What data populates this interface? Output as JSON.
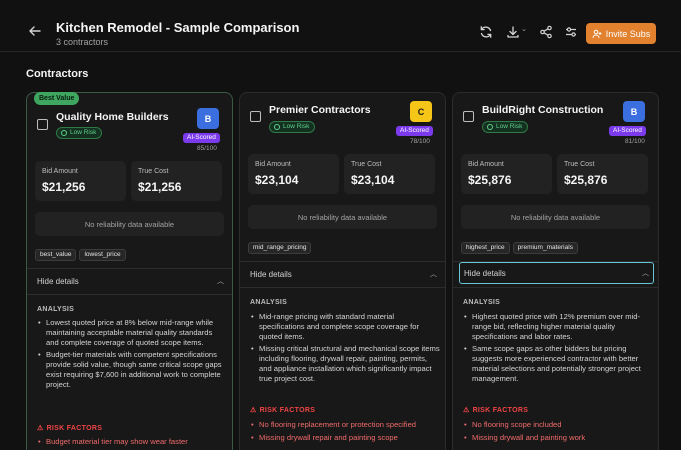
{
  "header": {
    "title": "Kitchen Remodel - Sample Comparison",
    "subtitle": "3 contractors",
    "invite_label": "Invite Subs"
  },
  "section_title": "Contractors",
  "colors": {
    "accent": "#e2812e",
    "ai_badge": "#7c3aed",
    "grade_blue": "#3b6fe0",
    "grade_yellow": "#f5c518",
    "best_value": "#3ea65f",
    "risk": "#ef4444"
  },
  "cards": [
    {
      "badge": "Best Value",
      "name": "Quality Home Builders",
      "risk_level": "Low Risk",
      "grade": "B",
      "ai_label": "AI-Scored",
      "score": "85/100",
      "bid_label": "Bid Amount",
      "bid_amount": "$21,256",
      "true_label": "True Cost",
      "true_cost": "$21,256",
      "reliability": "No reliability data available",
      "tags": [
        "best_value",
        "lowest_price"
      ],
      "details_label": "Hide details",
      "analysis_label": "ANALYSIS",
      "analysis": [
        "Lowest quoted price at 8% below mid-range while maintaining acceptable material quality standards and complete coverage of quoted scope items.",
        "Budget-tier materials with competent specifications provide solid value, though same critical scope gaps exist requiring $7,600 in additional work to complete project."
      ],
      "risk_factors_label": "RISK FACTORS",
      "risk_factors": [
        "Budget material tier may show wear faster"
      ]
    },
    {
      "name": "Premier Contractors",
      "risk_level": "Low Risk",
      "grade": "C",
      "ai_label": "AI-Scored",
      "score": "78/100",
      "bid_label": "Bid Amount",
      "bid_amount": "$23,104",
      "true_label": "True Cost",
      "true_cost": "$23,104",
      "reliability": "No reliability data available",
      "tags": [
        "mid_range_pricing"
      ],
      "details_label": "Hide details",
      "analysis_label": "ANALYSIS",
      "analysis": [
        "Mid-range pricing with standard material specifications and complete scope coverage for quoted items.",
        "Missing critical structural and mechanical scope items including flooring, drywall repair, painting, permits, and appliance installation which significantly impact true project cost."
      ],
      "risk_factors_label": "RISK FACTORS",
      "risk_factors": [
        "No flooring replacement or protection specified",
        "Missing drywall repair and painting scope"
      ]
    },
    {
      "name": "BuildRight Construction",
      "risk_level": "Low Risk",
      "grade": "B",
      "ai_label": "AI-Scored",
      "score": "81/100",
      "bid_label": "Bid Amount",
      "bid_amount": "$25,876",
      "true_label": "True Cost",
      "true_cost": "$25,876",
      "reliability": "No reliability data available",
      "tags": [
        "highest_price",
        "premium_materials"
      ],
      "details_label": "Hide details",
      "analysis_label": "ANALYSIS",
      "analysis": [
        "Highest quoted price with 12% premium over mid-range bid, reflecting higher material quality specifications and labor rates.",
        "Same scope gaps as other bidders but pricing suggests more experienced contractor with better material selections and potentially stronger project management."
      ],
      "risk_factors_label": "RISK FACTORS",
      "risk_factors": [
        "No flooring scope included",
        "Missing drywall and painting work"
      ]
    }
  ]
}
